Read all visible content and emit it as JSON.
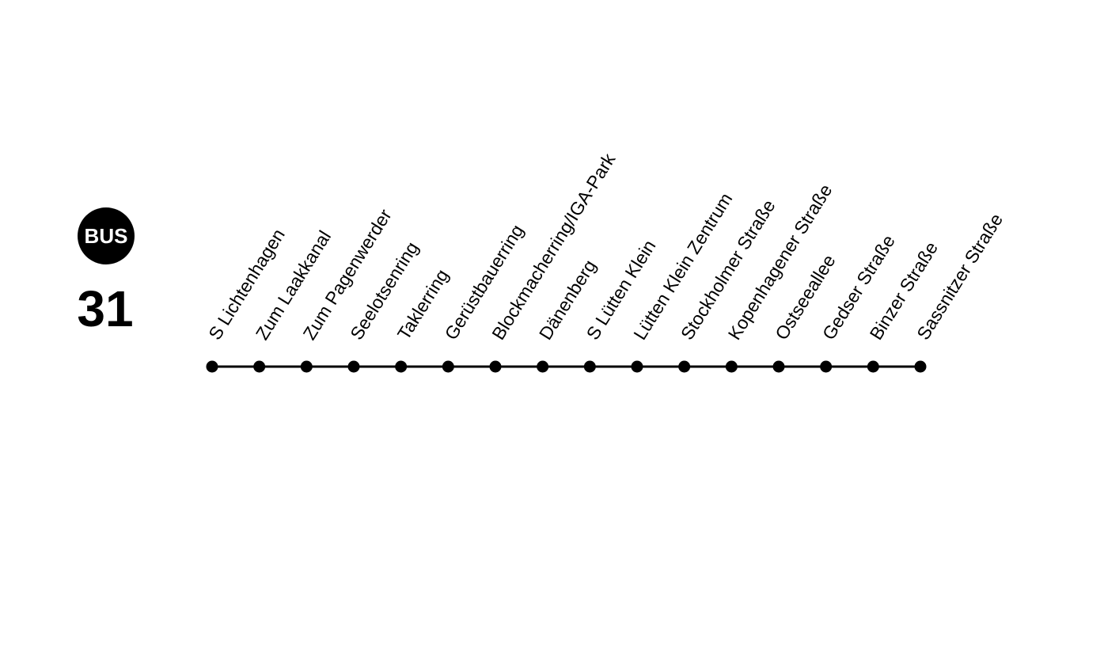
{
  "badge": "BUS",
  "line": "31",
  "stops": [
    "S Lichtenhagen",
    "Zum Laakkanal",
    "Zum Pagenwerder",
    "Seelotsenring",
    "Taklerring",
    "Gerüstbauerring",
    "Blockmacherring/IGA-Park",
    "Dänenberg",
    "S Lütten Klein",
    "Lütten Klein Zentrum",
    "Stockholmer Straße",
    "Kopenhagener Straße",
    "Ostseeallee",
    "Gedser Straße",
    "Binzer Straße",
    "Sassnitzer Straße"
  ]
}
